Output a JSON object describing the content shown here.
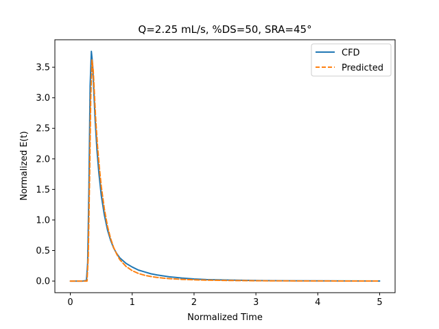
{
  "chart_data": {
    "type": "line",
    "title": "Q=2.25 mL/s, %DS=50, SRA=45°",
    "xlabel": "Normalized Time",
    "ylabel": "Normalized E(t)",
    "xlim": [
      -0.25,
      5.25
    ],
    "ylim": [
      -0.19,
      3.95
    ],
    "xticks": [
      0,
      1,
      2,
      3,
      4,
      5
    ],
    "xtick_labels": [
      "0",
      "1",
      "2",
      "3",
      "4",
      "5"
    ],
    "yticks": [
      0.0,
      0.5,
      1.0,
      1.5,
      2.0,
      2.5,
      3.0,
      3.5
    ],
    "ytick_labels": [
      "0.0",
      "0.5",
      "1.0",
      "1.5",
      "2.0",
      "2.5",
      "3.0",
      "3.5"
    ],
    "grid": false,
    "legend_position": "top-right",
    "series": [
      {
        "name": "CFD",
        "color": "#1f77b4",
        "linestyle": "solid",
        "x": [
          0,
          0.1,
          0.2,
          0.26,
          0.28,
          0.3,
          0.32,
          0.34,
          0.36,
          0.38,
          0.4,
          0.43,
          0.46,
          0.5,
          0.55,
          0.6,
          0.65,
          0.7,
          0.75,
          0.8,
          0.9,
          1.0,
          1.1,
          1.2,
          1.3,
          1.4,
          1.5,
          1.6,
          1.8,
          2.0,
          2.2,
          2.5,
          3.0,
          3.5,
          4.0,
          4.5,
          5.0
        ],
        "y": [
          0,
          0,
          0,
          0.01,
          0.3,
          1.5,
          3.2,
          3.76,
          3.55,
          3.1,
          2.65,
          2.15,
          1.78,
          1.4,
          1.08,
          0.84,
          0.67,
          0.54,
          0.45,
          0.38,
          0.29,
          0.23,
          0.18,
          0.15,
          0.12,
          0.1,
          0.085,
          0.07,
          0.05,
          0.035,
          0.025,
          0.017,
          0.009,
          0.005,
          0.003,
          0.002,
          0.001
        ]
      },
      {
        "name": "Predicted",
        "color": "#ff7f0e",
        "linestyle": "dashed",
        "x": [
          0,
          0.1,
          0.2,
          0.27,
          0.29,
          0.31,
          0.33,
          0.35,
          0.37,
          0.39,
          0.41,
          0.44,
          0.47,
          0.5,
          0.55,
          0.6,
          0.65,
          0.7,
          0.75,
          0.8,
          0.9,
          1.0,
          1.1,
          1.2,
          1.3,
          1.4,
          1.5,
          1.6,
          1.8,
          2.0,
          2.2,
          2.5,
          3.0,
          3.5,
          4.0,
          4.5,
          5.0
        ],
        "y": [
          0,
          0,
          0,
          0,
          0.4,
          1.6,
          3.0,
          3.62,
          3.45,
          3.05,
          2.65,
          2.2,
          1.85,
          1.55,
          1.18,
          0.9,
          0.7,
          0.55,
          0.44,
          0.35,
          0.24,
          0.17,
          0.125,
          0.095,
          0.075,
          0.06,
          0.048,
          0.04,
          0.028,
          0.02,
          0.015,
          0.01,
          0.005,
          0.003,
          0.002,
          0.001,
          0.0005
        ]
      }
    ]
  }
}
